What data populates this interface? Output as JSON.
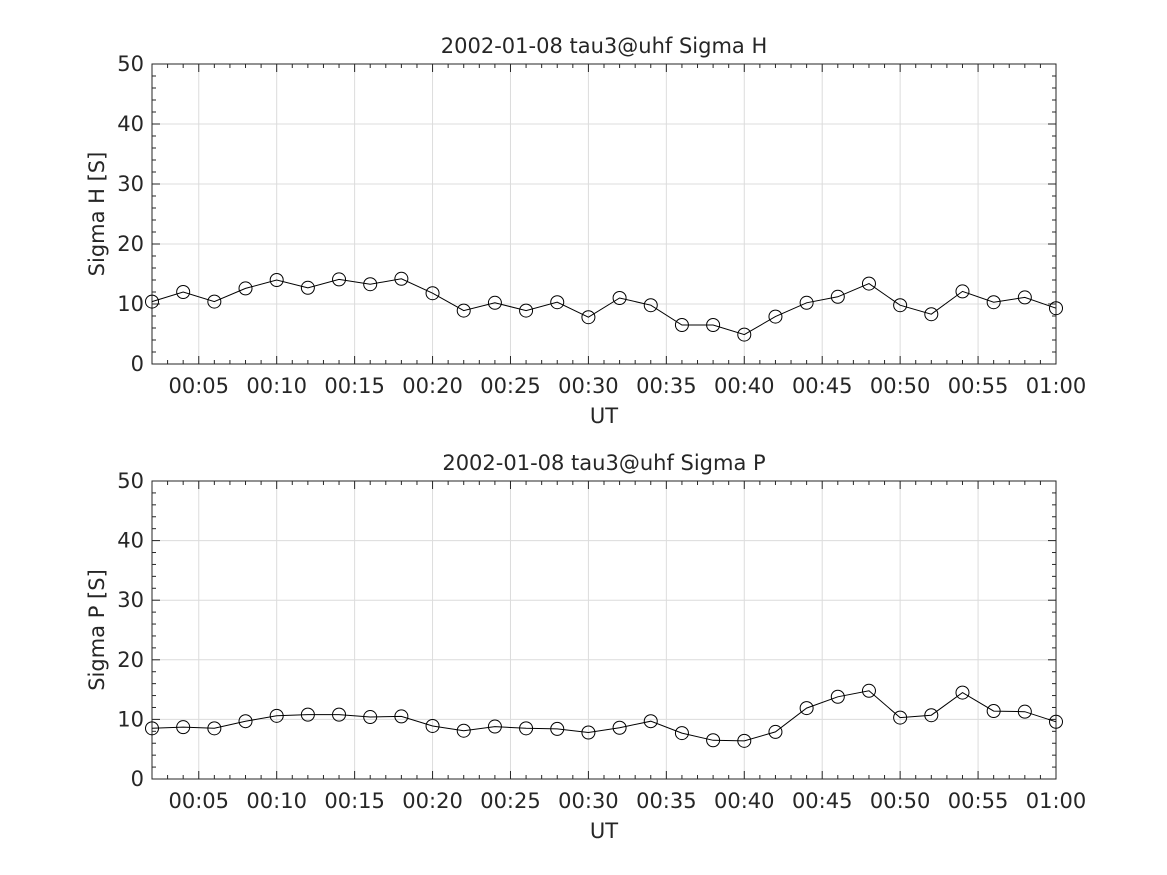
{
  "chart_data": [
    {
      "type": "line",
      "title": "2002-01-08  tau3@uhf Sigma H",
      "xlabel": "UT",
      "ylabel": "Sigma H [S]",
      "x_unit": "minutes",
      "xlim": [
        2,
        60
      ],
      "ylim": [
        0,
        50
      ],
      "xticks": [
        5,
        10,
        15,
        20,
        25,
        30,
        35,
        40,
        45,
        50,
        55,
        60
      ],
      "xtick_labels": [
        "00:05",
        "00:10",
        "00:15",
        "00:20",
        "00:25",
        "00:30",
        "00:35",
        "00:40",
        "00:45",
        "00:50",
        "00:55",
        "01:00"
      ],
      "yticks": [
        0,
        10,
        20,
        30,
        40,
        50
      ],
      "ytick_labels": [
        "0",
        "10",
        "20",
        "30",
        "40",
        "50"
      ],
      "grid": true,
      "x": [
        2,
        4,
        6,
        8,
        10,
        12,
        14,
        16,
        18,
        20,
        22,
        24,
        26,
        28,
        30,
        32,
        34,
        36,
        38,
        40,
        42,
        44,
        46,
        48,
        50,
        52,
        54,
        56,
        58,
        60
      ],
      "values": [
        10.4,
        12.0,
        10.4,
        12.6,
        14.0,
        12.7,
        14.1,
        13.3,
        14.2,
        11.8,
        8.9,
        10.2,
        8.9,
        10.3,
        7.8,
        11.0,
        9.8,
        6.5,
        6.5,
        4.9,
        7.9,
        10.2,
        11.2,
        13.4,
        9.8,
        8.3,
        12.1,
        10.3,
        11.1,
        9.3
      ]
    },
    {
      "type": "line",
      "title": "2002-01-08  tau3@uhf Sigma P",
      "xlabel": "UT",
      "ylabel": "Sigma P [S]",
      "x_unit": "minutes",
      "xlim": [
        2,
        60
      ],
      "ylim": [
        0,
        50
      ],
      "xticks": [
        5,
        10,
        15,
        20,
        25,
        30,
        35,
        40,
        45,
        50,
        55,
        60
      ],
      "xtick_labels": [
        "00:05",
        "00:10",
        "00:15",
        "00:20",
        "00:25",
        "00:30",
        "00:35",
        "00:40",
        "00:45",
        "00:50",
        "00:55",
        "01:00"
      ],
      "yticks": [
        0,
        10,
        20,
        30,
        40,
        50
      ],
      "ytick_labels": [
        "0",
        "10",
        "20",
        "30",
        "40",
        "50"
      ],
      "grid": true,
      "x": [
        2,
        4,
        6,
        8,
        10,
        12,
        14,
        16,
        18,
        20,
        22,
        24,
        26,
        28,
        30,
        32,
        34,
        36,
        38,
        40,
        42,
        44,
        46,
        48,
        50,
        52,
        54,
        56,
        58,
        60
      ],
      "values": [
        8.5,
        8.7,
        8.5,
        9.7,
        10.6,
        10.8,
        10.8,
        10.4,
        10.5,
        8.9,
        8.1,
        8.8,
        8.5,
        8.4,
        7.8,
        8.6,
        9.7,
        7.7,
        6.5,
        6.4,
        7.9,
        11.9,
        13.8,
        14.8,
        10.3,
        10.7,
        14.5,
        11.4,
        11.3,
        9.6
      ]
    }
  ]
}
